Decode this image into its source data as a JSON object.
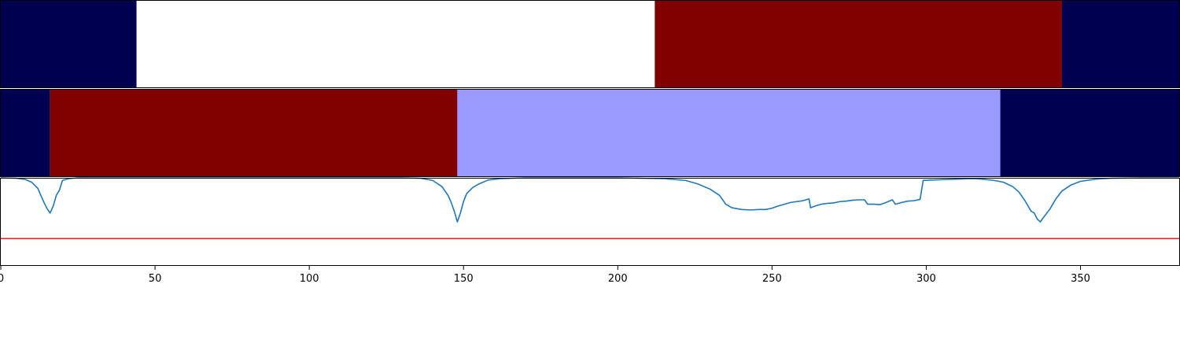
{
  "chart_data": [
    {
      "type": "heatmap",
      "xlim": [
        0,
        382
      ],
      "segments": [
        {
          "start": 0,
          "end": 44,
          "color": "#000050"
        },
        {
          "start": 44,
          "end": 212,
          "color": "#ffffff"
        },
        {
          "start": 212,
          "end": 344,
          "color": "#800000"
        },
        {
          "start": 344,
          "end": 382,
          "color": "#000050"
        }
      ]
    },
    {
      "type": "heatmap",
      "xlim": [
        0,
        382
      ],
      "segments": [
        {
          "start": 0,
          "end": 16,
          "color": "#000050"
        },
        {
          "start": 16,
          "end": 148,
          "color": "#800000"
        },
        {
          "start": 148,
          "end": 324,
          "color": "#9999ff"
        },
        {
          "start": 324,
          "end": 382,
          "color": "#000050"
        }
      ]
    },
    {
      "type": "line",
      "xlim": [
        0,
        382
      ],
      "ylim": [
        0,
        1
      ],
      "grid": false,
      "xticks": [
        0,
        50,
        100,
        150,
        200,
        250,
        300,
        350
      ],
      "xtick_labels": [
        "0",
        "50",
        "100",
        "150",
        "200",
        "250",
        "300",
        "350"
      ],
      "series": [
        {
          "color": "#1f77b4",
          "points": [
            [
              0,
              1.0
            ],
            [
              5,
              0.995
            ],
            [
              8,
              0.98
            ],
            [
              10,
              0.95
            ],
            [
              12,
              0.88
            ],
            [
              14,
              0.72
            ],
            [
              15,
              0.65
            ],
            [
              16,
              0.6
            ],
            [
              17,
              0.68
            ],
            [
              18,
              0.8
            ],
            [
              19,
              0.86
            ],
            [
              20,
              0.97
            ],
            [
              22,
              0.99
            ],
            [
              25,
              1.0
            ],
            [
              130,
              1.0
            ],
            [
              136,
              0.995
            ],
            [
              140,
              0.97
            ],
            [
              143,
              0.9
            ],
            [
              145,
              0.8
            ],
            [
              146,
              0.72
            ],
            [
              147,
              0.62
            ],
            [
              148,
              0.5
            ],
            [
              149,
              0.6
            ],
            [
              150,
              0.73
            ],
            [
              151,
              0.82
            ],
            [
              153,
              0.89
            ],
            [
              155,
              0.93
            ],
            [
              158,
              0.975
            ],
            [
              162,
              0.99
            ],
            [
              170,
              1.0
            ],
            [
              200,
              1.0
            ],
            [
              215,
              0.99
            ],
            [
              222,
              0.97
            ],
            [
              226,
              0.93
            ],
            [
              230,
              0.87
            ],
            [
              233,
              0.8
            ],
            [
              235,
              0.7
            ],
            [
              237,
              0.66
            ],
            [
              240,
              0.64
            ],
            [
              243,
              0.635
            ],
            [
              246,
              0.64
            ],
            [
              248,
              0.64
            ],
            [
              250,
              0.655
            ],
            [
              252,
              0.68
            ],
            [
              254,
              0.7
            ],
            [
              256,
              0.72
            ],
            [
              258,
              0.73
            ],
            [
              260,
              0.74
            ],
            [
              262,
              0.76
            ],
            [
              262.5,
              0.66
            ],
            [
              264,
              0.68
            ],
            [
              266,
              0.7
            ],
            [
              268,
              0.71
            ],
            [
              270,
              0.715
            ],
            [
              272,
              0.73
            ],
            [
              274,
              0.735
            ],
            [
              276,
              0.745
            ],
            [
              278,
              0.75
            ],
            [
              280,
              0.75
            ],
            [
              281,
              0.7
            ],
            [
              283,
              0.7
            ],
            [
              285,
              0.695
            ],
            [
              287,
              0.72
            ],
            [
              289,
              0.75
            ],
            [
              290,
              0.7
            ],
            [
              292,
              0.72
            ],
            [
              294,
              0.735
            ],
            [
              296,
              0.74
            ],
            [
              298,
              0.755
            ],
            [
              299,
              0.97
            ],
            [
              302,
              0.975
            ],
            [
              306,
              0.98
            ],
            [
              310,
              0.985
            ],
            [
              315,
              0.99
            ],
            [
              318,
              0.985
            ],
            [
              322,
              0.97
            ],
            [
              325,
              0.95
            ],
            [
              328,
              0.9
            ],
            [
              330,
              0.84
            ],
            [
              332,
              0.74
            ],
            [
              334,
              0.62
            ],
            [
              335,
              0.6
            ],
            [
              336,
              0.53
            ],
            [
              337,
              0.5
            ],
            [
              338,
              0.55
            ],
            [
              340,
              0.64
            ],
            [
              342,
              0.76
            ],
            [
              344,
              0.85
            ],
            [
              347,
              0.92
            ],
            [
              350,
              0.96
            ],
            [
              355,
              0.985
            ],
            [
              360,
              0.995
            ],
            [
              370,
              1.0
            ],
            [
              382,
              1.0
            ]
          ]
        },
        {
          "color": "#d62728",
          "points": [
            [
              0,
              0.31
            ],
            [
              382,
              0.31
            ]
          ]
        }
      ]
    }
  ]
}
